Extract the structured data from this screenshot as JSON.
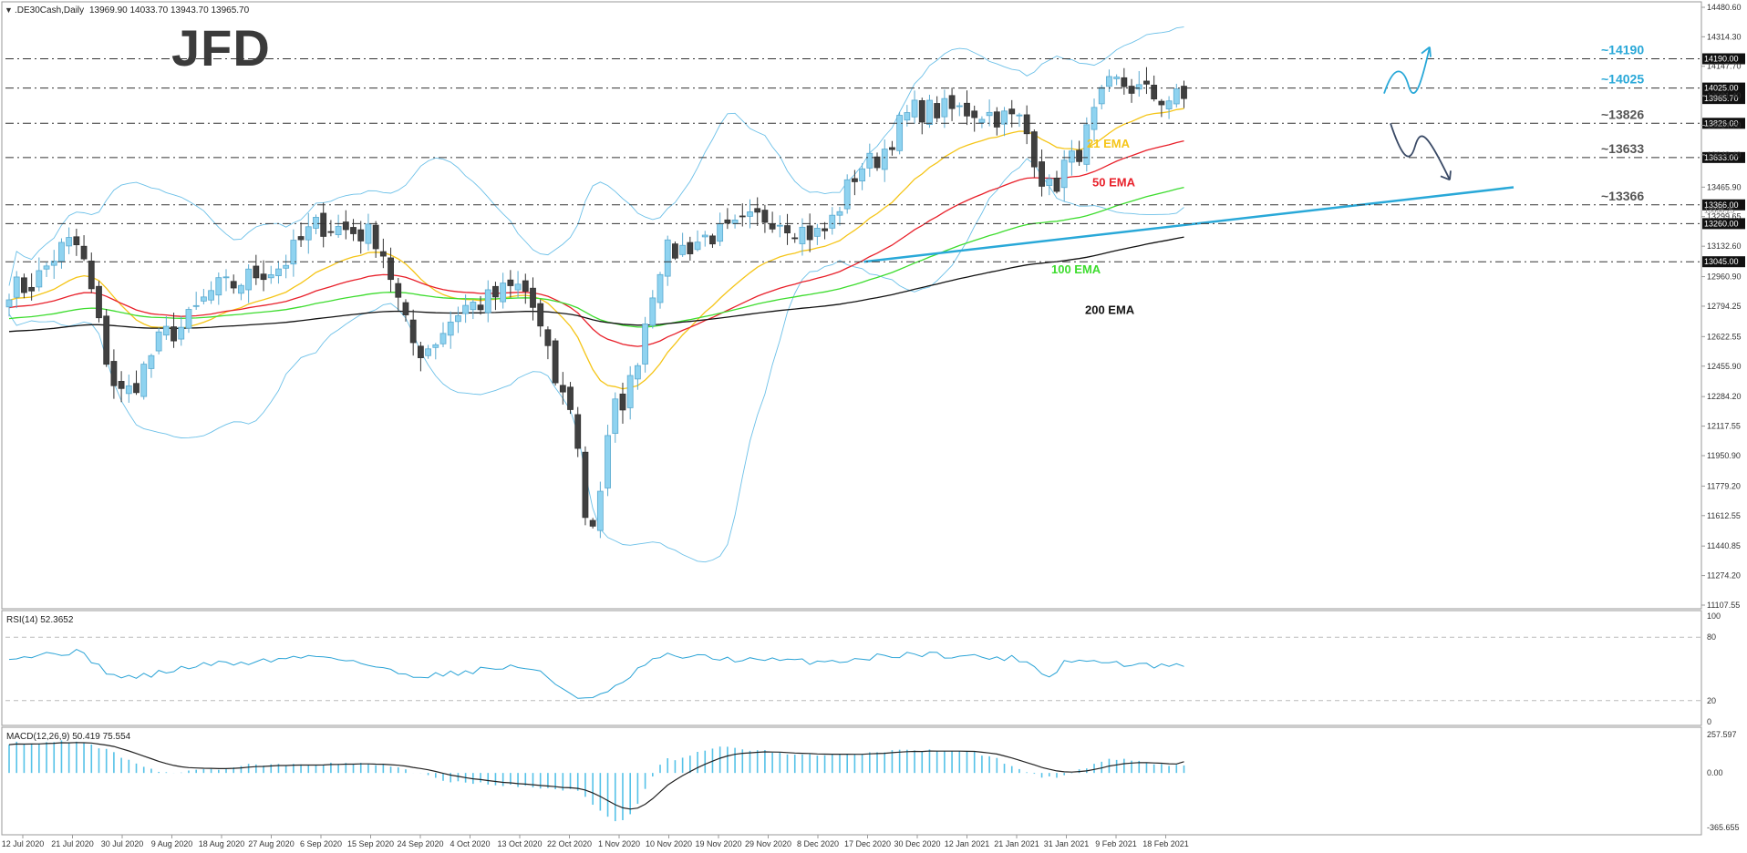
{
  "header": {
    "symbol_label": ".DE30Cash,Daily",
    "ohlc_label": "13969.90 14033.70 13943.70 13965.70"
  },
  "watermark": "JFD",
  "chart_data": {
    "type": "candlestick",
    "symbol": "DE30Cash",
    "timeframe": "Daily",
    "price_axis_ticks": [
      "14480.60",
      "14314.30",
      "14147.70",
      "13981.40",
      "13814.70",
      "13648.40",
      "13465.90",
      "13299.65",
      "13132.60",
      "12960.90",
      "12794.25",
      "12622.55",
      "12455.90",
      "12284.20",
      "12117.55",
      "11950.90",
      "11779.20",
      "11612.55",
      "11440.85",
      "11274.20",
      "11107.55"
    ],
    "price_range": [
      11107.55,
      14480.6
    ],
    "date_ticks": [
      "12 Jul 2020",
      "21 Jul 2020",
      "30 Jul 2020",
      "9 Aug 2020",
      "18 Aug 2020",
      "27 Aug 2020",
      "6 Sep 2020",
      "15 Sep 2020",
      "24 Sep 2020",
      "4 Oct 2020",
      "13 Oct 2020",
      "22 Oct 2020",
      "1 Nov 2020",
      "10 Nov 2020",
      "19 Nov 2020",
      "29 Nov 2020",
      "8 Dec 2020",
      "17 Dec 2020",
      "30 Dec 2020",
      "12 Jan 2021",
      "21 Jan 2021",
      "31 Jan 2021",
      "9 Feb 2021",
      "18 Feb 2021"
    ],
    "levels": [
      {
        "value": 14190,
        "box": "14190.00",
        "label": "~14190",
        "color": "#29a8d8"
      },
      {
        "value": 14025,
        "box": "14025.00",
        "label": "~14025",
        "color": "#29a8d8"
      },
      {
        "value": 13826,
        "box": "13826.00",
        "label": "~13826",
        "color": "#555555"
      },
      {
        "value": 13633,
        "box": "13633.00",
        "label": "~13633",
        "color": "#555555"
      },
      {
        "value": 13366,
        "box": "13366.00",
        "label": "~13366",
        "color": "#555555"
      },
      {
        "value": 13260,
        "box": "13260.00",
        "label": "",
        "color": "#555555"
      },
      {
        "value": 13045,
        "box": "13045.00",
        "label": "",
        "color": "#555555"
      }
    ],
    "current_price": {
      "value": 13965.7,
      "box": "13965.70"
    },
    "overlay_price_label": "13336.25",
    "indicator_labels": [
      {
        "name": "21 EMA",
        "color": "#f5c518"
      },
      {
        "name": "50 EMA",
        "color": "#e8202a"
      },
      {
        "name": "100 EMA",
        "color": "#3ddc2e"
      },
      {
        "name": "200 EMA",
        "color": "#111111"
      }
    ],
    "waypoints": [
      {
        "date": "12 Jul 2020",
        "value": 12900
      },
      {
        "date": "21 Jul 2020",
        "value": 13150
      },
      {
        "date": "30 Jul 2020",
        "value": 12300
      },
      {
        "date": "9 Aug 2020",
        "value": 12650
      },
      {
        "date": "18 Aug 2020",
        "value": 12900
      },
      {
        "date": "27 Aug 2020",
        "value": 13000
      },
      {
        "date": "6 Sep 2020",
        "value": 13250
      },
      {
        "date": "15 Sep 2020",
        "value": 13200
      },
      {
        "date": "24 Sep 2020",
        "value": 12550
      },
      {
        "date": "4 Oct 2020",
        "value": 12800
      },
      {
        "date": "13 Oct 2020",
        "value": 12900
      },
      {
        "date": "22 Oct 2020",
        "value": 12250
      },
      {
        "date": "26 Oct 2020",
        "value": 11550
      },
      {
        "date": "1 Nov 2020",
        "value": 12250
      },
      {
        "date": "10 Nov 2020",
        "value": 13100
      },
      {
        "date": "19 Nov 2020",
        "value": 13200
      },
      {
        "date": "29 Nov 2020",
        "value": 13300
      },
      {
        "date": "8 Dec 2020",
        "value": 13200
      },
      {
        "date": "17 Dec 2020",
        "value": 13600
      },
      {
        "date": "30 Dec 2020",
        "value": 13900
      },
      {
        "date": "12 Jan 2021",
        "value": 13900
      },
      {
        "date": "21 Jan 2021",
        "value": 13850
      },
      {
        "date": "28 Jan 2021",
        "value": 13450
      },
      {
        "date": "31 Jan 2021",
        "value": 13600
      },
      {
        "date": "9 Feb 2021",
        "value": 14050
      },
      {
        "date": "18 Feb 2021",
        "value": 13965.7
      }
    ],
    "rsi": {
      "label": "RSI(14) 52.3652",
      "ticks": [
        "100",
        "80",
        "20",
        "0"
      ],
      "levels": [
        80,
        20
      ],
      "last": 52.3652,
      "waypoints": [
        {
          "date": "12 Jul 2020",
          "value": 62
        },
        {
          "date": "21 Jul 2020",
          "value": 66
        },
        {
          "date": "30 Jul 2020",
          "value": 42
        },
        {
          "date": "18 Aug 2020",
          "value": 55
        },
        {
          "date": "6 Sep 2020",
          "value": 62
        },
        {
          "date": "24 Sep 2020",
          "value": 44
        },
        {
          "date": "13 Oct 2020",
          "value": 52
        },
        {
          "date": "26 Oct 2020",
          "value": 22
        },
        {
          "date": "10 Nov 2020",
          "value": 62
        },
        {
          "date": "29 Nov 2020",
          "value": 58
        },
        {
          "date": "8 Dec 2020",
          "value": 57
        },
        {
          "date": "30 Dec 2020",
          "value": 64
        },
        {
          "date": "21 Jan 2021",
          "value": 60
        },
        {
          "date": "28 Jan 2021",
          "value": 44
        },
        {
          "date": "31 Jan 2021",
          "value": 58
        },
        {
          "date": "18 Feb 2021",
          "value": 52.37
        }
      ]
    },
    "macd": {
      "label": "MACD(12,26,9) 50.419 75.554",
      "ticks": [
        "257.597",
        "0.00",
        "-365.655"
      ],
      "range": [
        -365.655,
        257.597
      ],
      "last_main": 50.419,
      "last_signal": 75.554,
      "waypoints": [
        {
          "date": "12 Jul 2020",
          "value": 200
        },
        {
          "date": "21 Jul 2020",
          "value": 210
        },
        {
          "date": "9 Aug 2020",
          "value": 5
        },
        {
          "date": "27 Aug 2020",
          "value": 60
        },
        {
          "date": "15 Sep 2020",
          "value": 60
        },
        {
          "date": "4 Oct 2020",
          "value": -70
        },
        {
          "date": "22 Oct 2020",
          "value": -110
        },
        {
          "date": "1 Nov 2020",
          "value": -330
        },
        {
          "date": "10 Nov 2020",
          "value": 90
        },
        {
          "date": "19 Nov 2020",
          "value": 170
        },
        {
          "date": "8 Dec 2020",
          "value": 120
        },
        {
          "date": "30 Dec 2020",
          "value": 150
        },
        {
          "date": "12 Jan 2021",
          "value": 140
        },
        {
          "date": "28 Jan 2021",
          "value": -30
        },
        {
          "date": "9 Feb 2021",
          "value": 90
        },
        {
          "date": "18 Feb 2021",
          "value": 50.419
        }
      ]
    },
    "colors": {
      "bull": "#8fd3f0",
      "bear": "#404040",
      "bands": "#6cc0e8",
      "trendline": "#29a8d8",
      "rsi": "#2aa3d6",
      "macd_hist": "#55c2e8",
      "macd_signal": "#222222"
    }
  }
}
